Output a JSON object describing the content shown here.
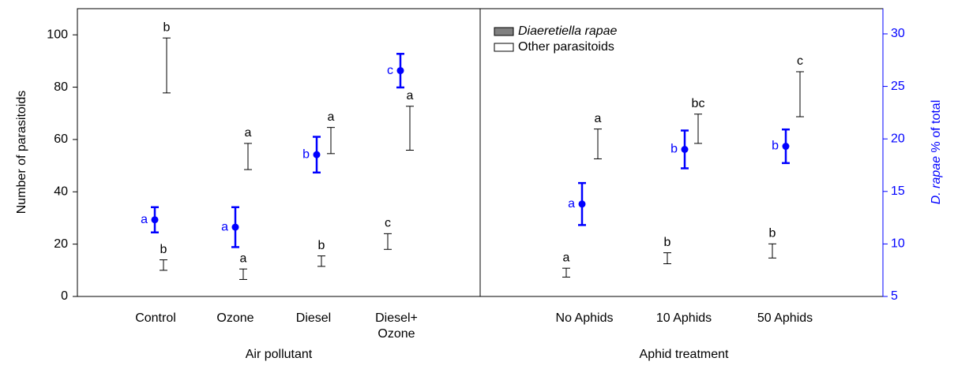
{
  "chart_data": [
    {
      "type": "errorbar",
      "xlabel": "Air pollutant",
      "ylabel": "Number of parasitoids",
      "categories": [
        "Control",
        "Ozone",
        "Diesel",
        "Diesel+\nOzone"
      ],
      "ylim": [
        0,
        110
      ],
      "yticks": [
        0,
        20,
        40,
        60,
        80,
        100
      ],
      "series": [
        {
          "color": "#808080",
          "values": [
            12,
            8.5,
            13.5,
            21
          ],
          "errors": [
            2,
            2,
            2,
            3
          ],
          "labels": [
            "b",
            "a",
            "b",
            "c"
          ]
        },
        {
          "color": "#ffffff",
          "values": [
            88.3,
            53.5,
            59.6,
            64.3
          ],
          "errors": [
            10.5,
            5,
            5,
            8.4
          ],
          "labels": [
            "b",
            "a",
            "a",
            "a"
          ]
        },
        {
          "color": "#0000ff",
          "axis": "y2",
          "values": [
            12.3,
            11.6,
            18.5,
            26.5
          ],
          "errors": [
            1.2,
            1.9,
            1.7,
            1.6
          ],
          "labels": [
            "a",
            "a",
            "b",
            "c"
          ]
        }
      ]
    },
    {
      "type": "errorbar",
      "xlabel": "Aphid treatment",
      "y2label": [
        "D. rapae",
        " % of total"
      ],
      "categories": [
        "No Aphids",
        "10 Aphids",
        "50 Aphids"
      ],
      "y2lim": [
        5,
        32.4
      ],
      "y2ticks": [
        5,
        10,
        15,
        20,
        25,
        30
      ],
      "y2color": "#0000ff",
      "series": [
        {
          "name": "Diaeretiella rapae",
          "color": "#808080",
          "values": [
            9.1,
            14.6,
            17.4
          ],
          "errors": [
            1.7,
            2.1,
            2.7
          ],
          "labels": [
            "a",
            "b",
            "b"
          ]
        },
        {
          "name": "Other parasitoids",
          "color": "#ffffff",
          "values": [
            58.3,
            64.1,
            77.3
          ],
          "errors": [
            5.7,
            5.6,
            8.6
          ],
          "labels": [
            "a",
            "bc",
            "c"
          ]
        },
        {
          "color": "#0000ff",
          "axis": "y2",
          "values": [
            13.8,
            19.0,
            19.3
          ],
          "errors": [
            2.0,
            1.8,
            1.6
          ],
          "labels": [
            "a",
            "b",
            "b"
          ]
        }
      ]
    }
  ]
}
